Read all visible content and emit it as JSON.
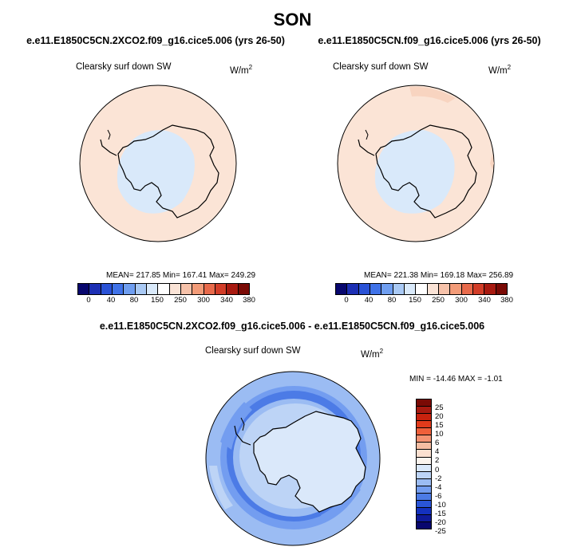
{
  "figure": {
    "season": "SON"
  },
  "panels": [
    {
      "title": "e.e11.E1850C5CN.2XCO2.f09_g16.cice5.006 (yrs 26-50)",
      "variable": "Clearsky surf down SW",
      "units_base": "W/m",
      "units_exp": "2",
      "stats": "MEAN= 217.85  Min= 167.41  Max= 249.29"
    },
    {
      "title": "e.e11.E1850C5CN.f09_g16.cice5.006 (yrs 26-50)",
      "variable": "Clearsky surf down SW",
      "units_base": "W/m",
      "units_exp": "2",
      "stats": "MEAN= 221.38  Min= 169.18  Max= 256.89"
    },
    {
      "title": "e.e11.E1850C5CN.2XCO2.f09_g16.cice5.006 - e.e11.E1850C5CN.f09_g16.cice5.006",
      "variable": "Clearsky surf down SW",
      "units_base": "W/m",
      "units_exp": "2",
      "stats": "MIN = -14.46 MAX =  -1.01"
    }
  ],
  "colorbar_abs": {
    "colors": [
      "#08076e",
      "#1c2fb4",
      "#2a52d6",
      "#3f72e8",
      "#6f9ef0",
      "#a9c9f4",
      "#d9e9fa",
      "#ffffff",
      "#fae3d6",
      "#f6c2aa",
      "#f29b78",
      "#e86a4b",
      "#d23d28",
      "#a81a10",
      "#7a0a05"
    ],
    "labels": [
      "0",
      "40",
      "80",
      "150",
      "250",
      "300",
      "340",
      "380"
    ]
  },
  "colorbar_diff": {
    "colors": [
      "#7a0a05",
      "#a81a10",
      "#c8220e",
      "#e23b1b",
      "#ef5f3a",
      "#f49272",
      "#f6bda2",
      "#fbe0d0",
      "#fbf4ee",
      "#dae8fa",
      "#bdd4f6",
      "#9bbcf3",
      "#739df0",
      "#4c7be6",
      "#2a55d7",
      "#1431bf",
      "#0f1a9a",
      "#08076e"
    ],
    "labels": [
      "25",
      "20",
      "15",
      "10",
      "6",
      "4",
      "2",
      "0",
      "-2",
      "-4",
      "-6",
      "-10",
      "-15",
      "-20",
      "-25"
    ]
  }
}
